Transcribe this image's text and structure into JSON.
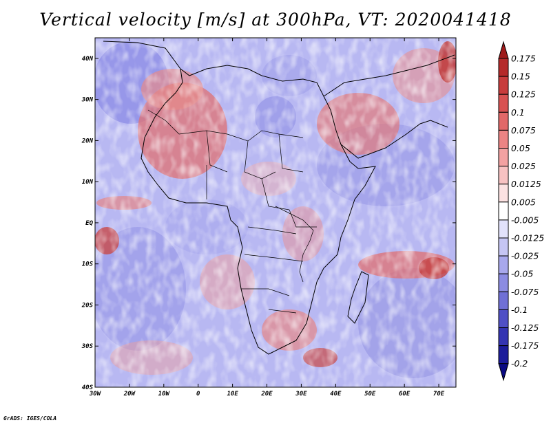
{
  "title": "Vertical velocity [m/s] at 300hPa, VT: 2020041418",
  "credit": "GrADS: IGES/COLA",
  "map": {
    "projection": "lat-lon",
    "lon_range": [
      -30,
      75
    ],
    "lat_range": [
      -40,
      45
    ],
    "lon_ticks": [
      "30W",
      "20W",
      "10W",
      "0",
      "10E",
      "20E",
      "30E",
      "40E",
      "50E",
      "60E",
      "70E"
    ],
    "lat_ticks": [
      "40N",
      "30N",
      "20N",
      "10N",
      "EQ",
      "10S",
      "20S",
      "30S",
      "40S"
    ],
    "field": "vertical velocity"
  },
  "colorbar": {
    "labels": [
      "0.175",
      "0.15",
      "0.125",
      "0.1",
      "0.075",
      "0.05",
      "0.025",
      "0.0125",
      "0.005",
      "-0.005",
      "-0.0125",
      "-0.025",
      "-0.05",
      "-0.075",
      "-0.1",
      "-0.125",
      "-0.175",
      "-0.2"
    ],
    "colors": [
      "#9e1a1a",
      "#b52a2a",
      "#c83c3c",
      "#d85252",
      "#e26868",
      "#ec8484",
      "#f3a2a2",
      "#f8c2c2",
      "#fce2e2",
      "#ffffff",
      "#e2e2fb",
      "#c6c6f4",
      "#a8a8ec",
      "#8c8ce2",
      "#7070d6",
      "#5050c6",
      "#3434b2",
      "#1c1c9a",
      "#0a0a82"
    ]
  }
}
